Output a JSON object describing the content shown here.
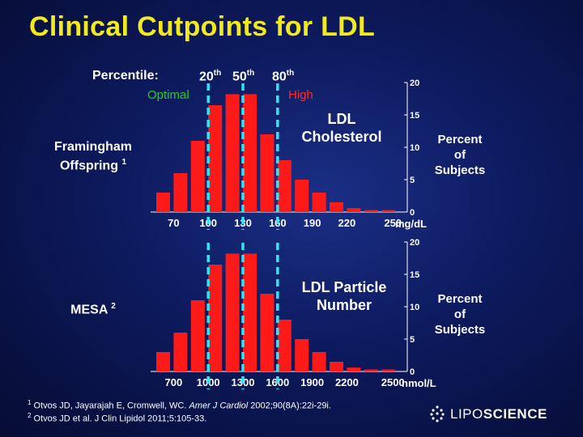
{
  "title": "Clinical Cutpoints for LDL",
  "percentile": {
    "label": "Percentile:",
    "p20": "20",
    "p50": "50",
    "p80": "80",
    "suffix": "th"
  },
  "zones": {
    "optimal": "Optimal",
    "high": "High"
  },
  "colors": {
    "bar": "#ff1a1a",
    "cutline": "#2ee6f0",
    "title": "#f2ea1e",
    "optimal": "#1fd21f",
    "high": "#ff2a2a"
  },
  "chart_data": [
    {
      "type": "bar",
      "name": "ldl-cholesterol",
      "group_label": "Framingham",
      "group_label_line2": "Offspring",
      "group_ref": "1",
      "title_line1": "LDL",
      "title_line2": "Cholesterol",
      "ylabel": [
        "Percent",
        "of",
        "Subjects"
      ],
      "x_tick_labels": [
        "70",
        "100",
        "130",
        "160",
        "190",
        "220",
        "250"
      ],
      "x_unit": "mg/dL",
      "y_ticks": [
        "20",
        "15",
        "10",
        "5",
        "0"
      ],
      "ylim": [
        0,
        20
      ],
      "cutpoints": [
        100,
        130,
        160
      ],
      "bin_start": 55,
      "bin_width": 15,
      "values": [
        3,
        6,
        11,
        16.5,
        18.2,
        18.2,
        12,
        8,
        5,
        3,
        1.5,
        0.6,
        0.3,
        0.3
      ]
    },
    {
      "type": "bar",
      "name": "ldl-particle-number",
      "group_label": "MESA",
      "group_label_line2": "",
      "group_ref": "2",
      "title_line1": "LDL Particle",
      "title_line2": "Number",
      "ylabel": [
        "Percent",
        "of",
        "Subjects"
      ],
      "x_tick_labels": [
        "700",
        "1000",
        "1300",
        "1600",
        "1900",
        "2200",
        "2500"
      ],
      "x_unit": "nmol/L",
      "y_ticks": [
        "20",
        "15",
        "10",
        "5",
        "0"
      ],
      "ylim": [
        0,
        20
      ],
      "cutpoints": [
        1000,
        1300,
        1600
      ],
      "bin_start": 550,
      "bin_width": 150,
      "values": [
        3,
        6,
        11,
        16.5,
        18.2,
        18.2,
        12,
        8,
        5,
        3,
        1.5,
        0.6,
        0.3,
        0.3
      ]
    }
  ],
  "references": {
    "r1_num": "1",
    "r1_authors": "Otvos JD, Jayarajah E, Cromwell, WC. ",
    "r1_journal": "Amer J Cardiol",
    "r1_rest": " 2002;90(8A):22i-29i.",
    "r2_num": "2",
    "r2_text": "Otvos JD et al. J Clin Lipidol 2011;5:105-33."
  },
  "logo": {
    "part1": "LIPO",
    "part2": "SCIENCE"
  }
}
